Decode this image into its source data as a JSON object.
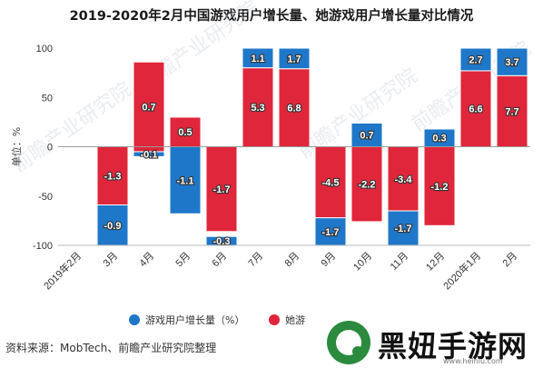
{
  "title": "2019-2020年2月中国游戏用户增长量、她游戏用户增长量对比情况",
  "source": "资料来源：MobTech、前瞻产业研究院整理",
  "watermark_text": "前瞻产业研究院",
  "brand": {
    "name": "黑妞手游网",
    "url": "www.heiniu.com"
  },
  "legend": [
    {
      "label": "游戏用户增长量（%）",
      "color": "#1f77c9"
    },
    {
      "label": "她游",
      "color": "#e0263a"
    }
  ],
  "chart_data": {
    "type": "bar",
    "categories": [
      "2019年2月",
      "3月",
      "4月",
      "5月",
      "6月",
      "7月",
      "8月",
      "9月",
      "10月",
      "11月",
      "12月",
      "2020年1月",
      "2月"
    ],
    "ylabel": "单位：%",
    "ylim": [
      -100,
      100
    ],
    "yticks": [
      -100,
      -50,
      0,
      50,
      100
    ],
    "grid": false,
    "legend_position": "bottom",
    "series": [
      {
        "name": "游戏用户增长量（%）",
        "color": "#1f77c9",
        "labels": [
          null,
          "-0.9",
          "-0.1",
          "-1.1",
          "-0.3",
          "1.1",
          "1.7",
          "-1.7",
          "0.7",
          "-1.7",
          "0.3",
          "2.7",
          "3.7"
        ],
        "bars": [
          null,
          [
            -100,
            -59
          ],
          [
            -10,
            -5
          ],
          [
            -68,
            0
          ],
          [
            -100,
            -91
          ],
          [
            100,
            80
          ],
          [
            100,
            79
          ],
          [
            -100,
            -72
          ],
          [
            24,
            0
          ],
          [
            -100,
            -65
          ],
          [
            18,
            0
          ],
          [
            100,
            77
          ],
          [
            100,
            72
          ]
        ]
      },
      {
        "name": "她游",
        "color": "#e0263a",
        "labels": [
          null,
          "-1.3",
          "0.7",
          "0.5",
          "-1.7",
          "5.3",
          "6.8",
          "-4.5",
          "-2.2",
          "-3.4",
          "-1.2",
          "6.6",
          "7.7"
        ],
        "bars": [
          null,
          [
            -59,
            0
          ],
          [
            86,
            -5
          ],
          [
            30,
            0
          ],
          [
            0,
            -86
          ],
          [
            80,
            0
          ],
          [
            79,
            0
          ],
          [
            0,
            -72
          ],
          [
            0,
            -76
          ],
          [
            0,
            -65
          ],
          [
            0,
            -80
          ],
          [
            77,
            0
          ],
          [
            72,
            0
          ]
        ]
      }
    ]
  }
}
